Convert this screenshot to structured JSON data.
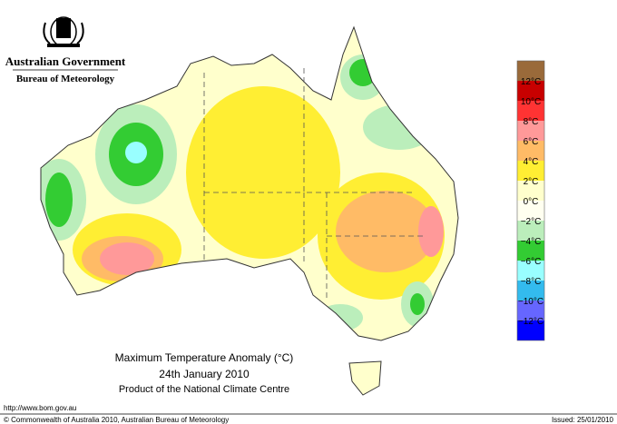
{
  "header": {
    "agency": "Australian Government",
    "bureau": "Bureau of Meteorology"
  },
  "map": {
    "title": "Maximum Temperature Anomaly (°C)",
    "date": "24th January 2010",
    "credit": "Product of the National Climate Centre"
  },
  "legend": {
    "colors": [
      "#9a6a3a",
      "#c80000",
      "#ff3333",
      "#ff9999",
      "#ffbb66",
      "#ffee33",
      "#ffffcc",
      "#fffff0",
      "#bbeebb",
      "#33cc33",
      "#99ffff",
      "#33bbee",
      "#6666ff",
      "#0000ff"
    ],
    "labels": [
      "12°C",
      "10°C",
      "8°C",
      "6°C",
      "4°C",
      "2°C",
      "0°C",
      "−2°C",
      "−4°C",
      "−6°C",
      "−8°C",
      "−10°C",
      "−12°C"
    ]
  },
  "footer": {
    "url": "http://www.bom.gov.au",
    "copyright": "© Commonwealth of Australia 2010, Australian Bureau of Meteorology",
    "issued": "Issued: 25/01/2010"
  }
}
